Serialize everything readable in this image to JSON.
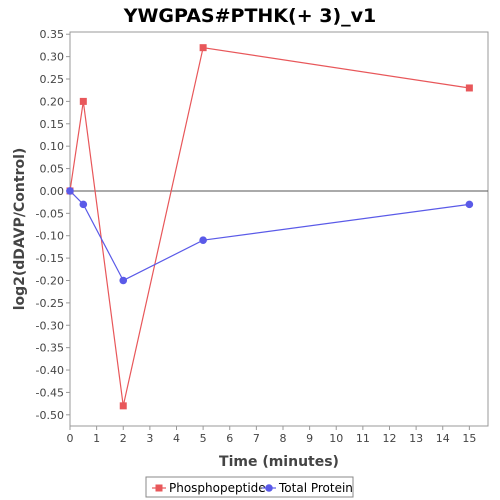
{
  "chart_data": {
    "type": "line",
    "title": "YWGPAS#PTHK(+ 3)_v1",
    "xlabel": "Time (minutes)",
    "ylabel": "log2(dDAVP/Control)",
    "xlim": [
      0,
      15.7
    ],
    "ylim": [
      -0.525,
      0.355
    ],
    "xticks": [
      0,
      1,
      2,
      3,
      4,
      5,
      6,
      7,
      8,
      9,
      10,
      11,
      12,
      13,
      14,
      15
    ],
    "yticks": [
      0.35,
      0.3,
      0.25,
      0.2,
      0.15,
      0.1,
      0.05,
      0.0,
      -0.05,
      -0.1,
      -0.15,
      -0.2,
      -0.25,
      -0.3,
      -0.35,
      -0.4,
      -0.45,
      -0.5
    ],
    "zero_line": true,
    "grid": false,
    "legend_position": "bottom",
    "series": [
      {
        "name": "Phosphopeptide",
        "color": "#e8575a",
        "marker": "square",
        "x": [
          0,
          0.5,
          2,
          5,
          15
        ],
        "y": [
          0.0,
          0.2,
          -0.48,
          0.32,
          0.23
        ]
      },
      {
        "name": "Total Protein",
        "color": "#5a5ae8",
        "marker": "circle",
        "x": [
          0,
          0.5,
          2,
          5,
          15
        ],
        "y": [
          0.0,
          -0.03,
          -0.2,
          -0.11,
          -0.03
        ]
      }
    ]
  }
}
